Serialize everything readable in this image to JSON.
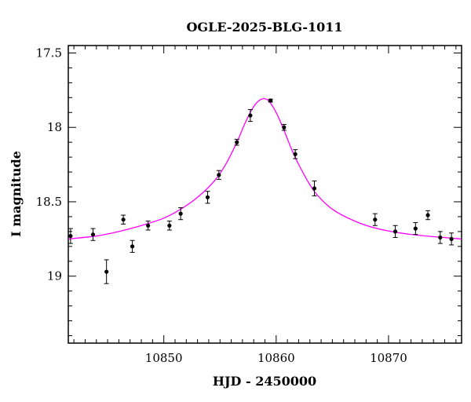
{
  "chart_data": {
    "type": "scatter",
    "title": "OGLE-2025-BLG-1011",
    "xlabel": "HJD - 2450000",
    "ylabel": "I magnitude",
    "xlim": [
      10841.5,
      10876.5
    ],
    "ylim": [
      19.45,
      17.45
    ],
    "y_inverted": true,
    "x_ticks": [
      10850,
      10860,
      10870
    ],
    "x_tick_labels": [
      "10850",
      "10860",
      "10870"
    ],
    "y_ticks": [
      17.5,
      18,
      18.5,
      19
    ],
    "y_tick_labels": [
      "17.5",
      "18",
      "18.5",
      "19"
    ],
    "grid": false,
    "colors": {
      "points": "#000000",
      "model": "#ff00ff"
    },
    "series": [
      {
        "kind": "points_with_errorbars",
        "x": [
          10841.7,
          10843.7,
          10844.9,
          10846.4,
          10847.2,
          10848.6,
          10850.5,
          10851.5,
          10853.9,
          10854.9,
          10856.5,
          10857.7,
          10859.5,
          10860.7,
          10861.7,
          10863.4,
          10868.8,
          10870.6,
          10872.4,
          10873.5,
          10874.6,
          10875.6
        ],
        "y": [
          18.73,
          18.72,
          18.97,
          18.62,
          18.8,
          18.66,
          18.66,
          18.58,
          18.47,
          18.32,
          18.1,
          17.92,
          17.82,
          18.0,
          18.18,
          18.41,
          18.62,
          18.7,
          18.68,
          18.59,
          18.74,
          18.75
        ],
        "err": [
          0.05,
          0.04,
          0.08,
          0.03,
          0.04,
          0.03,
          0.03,
          0.04,
          0.04,
          0.03,
          0.02,
          0.04,
          0.01,
          0.02,
          0.03,
          0.05,
          0.04,
          0.04,
          0.04,
          0.03,
          0.04,
          0.04
        ]
      },
      {
        "kind": "model_curve",
        "x": [
          10841.5,
          10844,
          10846,
          10848,
          10850,
          10851.5,
          10853,
          10854.5,
          10855.5,
          10856.5,
          10857.3,
          10858,
          10858.7,
          10859.3,
          10860,
          10860.7,
          10861.5,
          10862.5,
          10863.5,
          10865,
          10867,
          10869,
          10872,
          10876.5
        ],
        "y": [
          18.75,
          18.73,
          18.7,
          18.66,
          18.61,
          18.55,
          18.47,
          18.36,
          18.25,
          18.1,
          17.96,
          17.86,
          17.81,
          17.82,
          17.9,
          18.02,
          18.17,
          18.32,
          18.44,
          18.55,
          18.63,
          18.68,
          18.72,
          18.75
        ]
      }
    ]
  }
}
